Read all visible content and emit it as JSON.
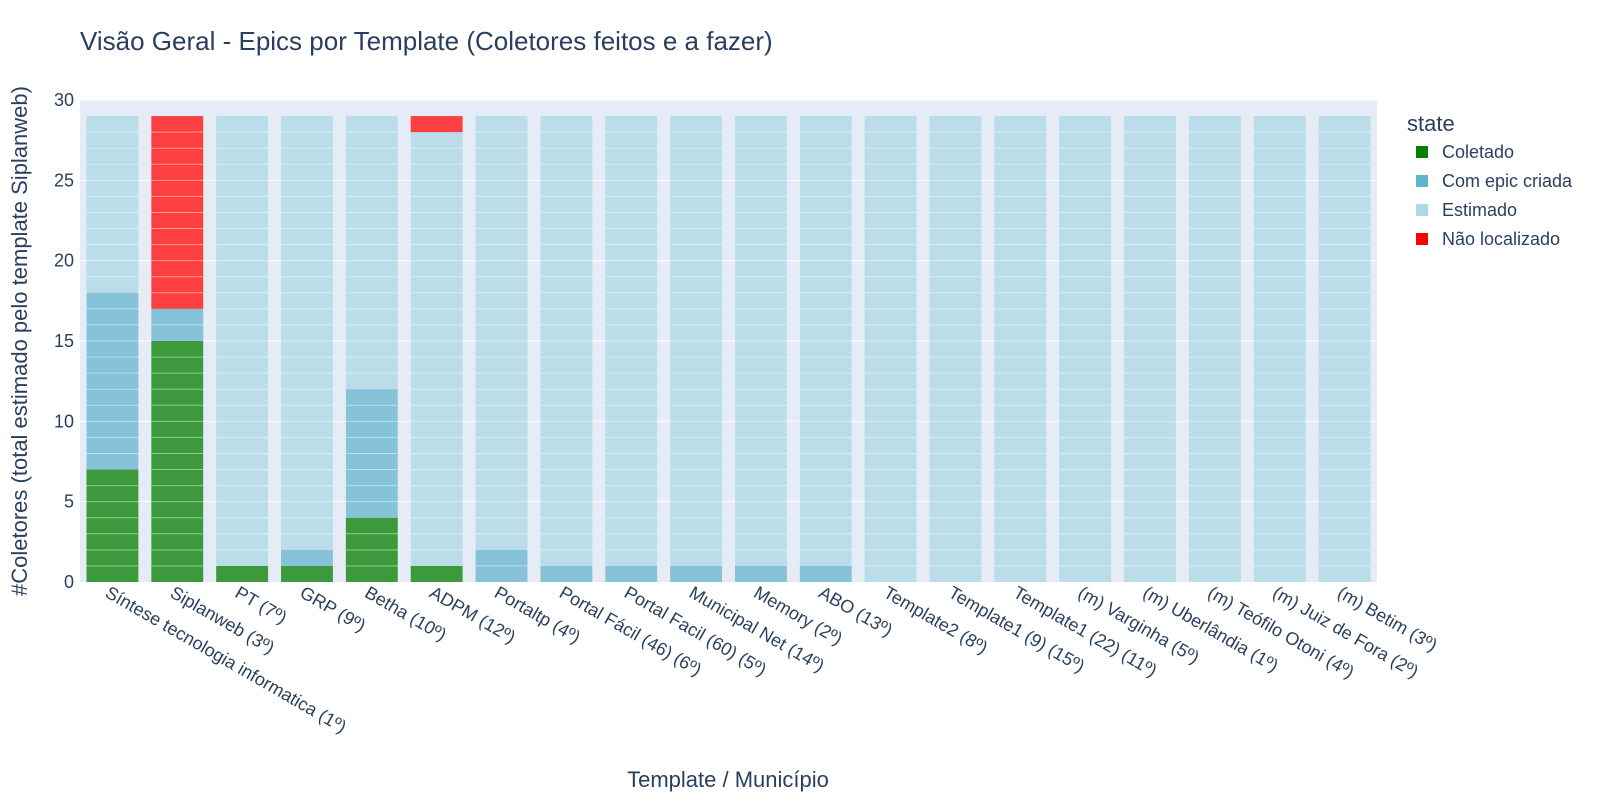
{
  "chart_data": {
    "type": "bar",
    "title": "Visão Geral - Epics por Template (Coletores feitos e a fazer)",
    "xlabel": "Template / Município",
    "ylabel": "#Coletores (total estimado pelo template Siplanweb)",
    "ylim": [
      0,
      30
    ],
    "yticks": [
      "0",
      "5",
      "10",
      "15",
      "20",
      "25",
      "30"
    ],
    "barmode": "stack",
    "grid": true,
    "legend": {
      "title": "state",
      "position": "right"
    },
    "categories": [
      "Síntese tecnologia informatica (1º)",
      "Siplanweb (3º)",
      "PT (7º)",
      "GRP (9º)",
      "Betha (10º)",
      "ADPM (12º)",
      "Portaltp (4º)",
      "Portal Fácil (46) (6º)",
      "Portal Facil (60) (5º)",
      "Municipal Net (14º)",
      "Memory (2º)",
      "ABO (13º)",
      "Template2 (8º)",
      "Template1 (9) (15º)",
      "Template1 (22) (11º)",
      "(m) Varginha (5º)",
      "(m) Uberlândia (1º)",
      "(m) Teófilo Otoni (4º)",
      "(m) Juiz de Fora (2º)",
      "(m) Betim (3º)"
    ],
    "series": [
      {
        "name": "Coletado",
        "color": "#008000",
        "barColor": "#3c9a3c",
        "values": [
          7,
          15,
          1,
          1,
          4,
          1,
          0,
          0,
          0,
          0,
          0,
          0,
          0,
          0,
          0,
          0,
          0,
          0,
          0,
          0
        ]
      },
      {
        "name": "Com epic criada",
        "color": "#5fb5cb",
        "barColor": "#86c2d8",
        "values": [
          11,
          2,
          0,
          1,
          8,
          0,
          2,
          1,
          1,
          1,
          1,
          1,
          0,
          0,
          0,
          0,
          0,
          0,
          0,
          0
        ]
      },
      {
        "name": "Estimado",
        "color": "#add8e6",
        "barColor": "#badde9",
        "values": [
          11,
          0,
          28,
          27,
          17,
          27,
          27,
          28,
          28,
          28,
          28,
          28,
          29,
          29,
          29,
          29,
          29,
          29,
          29,
          29
        ]
      },
      {
        "name": "Não localizado",
        "color": "#ff0000",
        "barColor": "#fc4040",
        "values": [
          0,
          12,
          0,
          0,
          0,
          1,
          0,
          0,
          0,
          0,
          0,
          0,
          0,
          0,
          0,
          0,
          0,
          0,
          0,
          0
        ]
      }
    ]
  }
}
